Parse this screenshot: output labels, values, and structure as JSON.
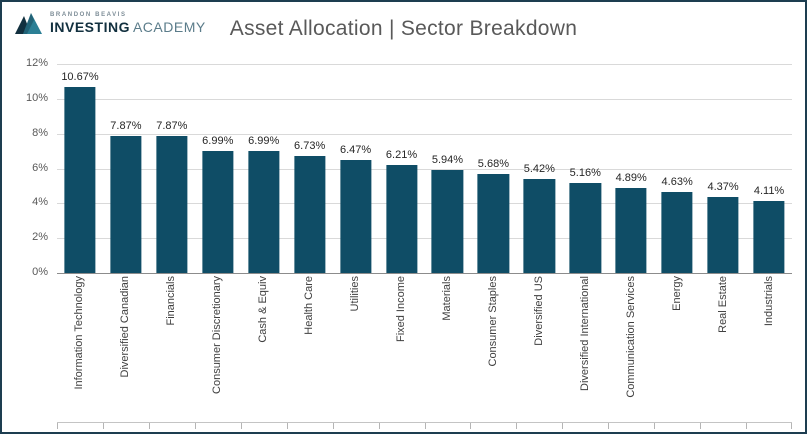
{
  "brand": {
    "top": "BRANDON BEAVIS",
    "bold": "INVESTING",
    "light": "ACADEMY"
  },
  "chart_data": {
    "type": "bar",
    "title": "Asset Allocation | Sector Breakdown",
    "categories": [
      "Information Technology",
      "Diversified Canadian",
      "Financials",
      "Consumer Discretionary",
      "Cash & Equiv",
      "Health Care",
      "Utilities",
      "Fixed Income",
      "Materials",
      "Consumer Staples",
      "Diversified US",
      "Diversified International",
      "Communication Services",
      "Energy",
      "Real Estate",
      "Industrials"
    ],
    "values": [
      10.67,
      7.87,
      7.87,
      6.99,
      6.99,
      6.73,
      6.47,
      6.21,
      5.94,
      5.68,
      5.42,
      5.16,
      4.89,
      4.63,
      4.37,
      4.11
    ],
    "value_labels": [
      "10.67%",
      "7.87%",
      "7.87%",
      "6.99%",
      "6.99%",
      "6.73%",
      "6.47%",
      "6.21%",
      "5.94%",
      "5.68%",
      "5.42%",
      "5.16%",
      "4.89%",
      "4.63%",
      "4.37%",
      "4.11%"
    ],
    "xlabel": "",
    "ylabel": "",
    "ylim": [
      0,
      12
    ],
    "ytick_step": 2,
    "ytick_labels": [
      "0%",
      "2%",
      "4%",
      "6%",
      "8%",
      "10%",
      "12%"
    ],
    "grid": true,
    "legend": "none",
    "bar_color": "#0f4d66"
  },
  "colors": {
    "frame_border": "#1d3d50",
    "title": "#595959",
    "gridline": "#d9d9d9",
    "zero_axis": "#8c8c8c",
    "bar": "#0f4d66",
    "axis_text": "#595959",
    "category_text": "#404040"
  }
}
